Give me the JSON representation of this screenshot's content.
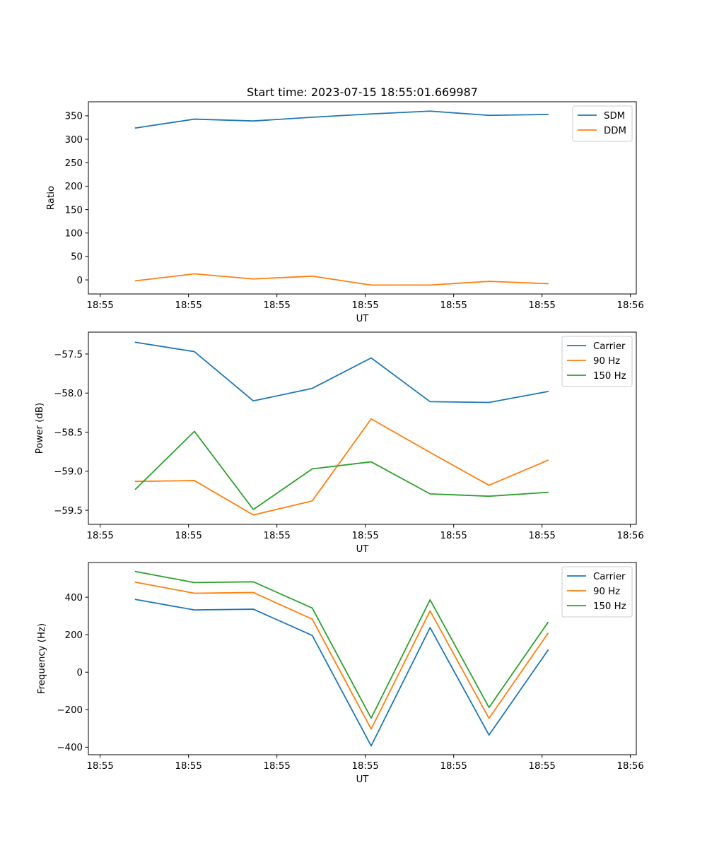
{
  "figure": {
    "title": "Start time: 2023-07-15 18:55:01.669987"
  },
  "chart_data": [
    {
      "type": "line",
      "xlabel": "UT",
      "ylabel": "Ratio",
      "x": [
        1,
        2,
        3,
        4,
        5,
        6,
        7,
        8
      ],
      "xlim": [
        0.2,
        9.5
      ],
      "x_ticks": [
        0.4,
        1.9,
        3.4,
        4.9,
        6.4,
        7.9,
        9.4
      ],
      "x_tick_labels": [
        "18:55",
        "18:55",
        "18:55",
        "18:55",
        "18:55",
        "18:55",
        "18:56"
      ],
      "ylim": [
        -30,
        380
      ],
      "y_ticks": [
        0,
        50,
        100,
        150,
        200,
        250,
        300,
        350
      ],
      "y_tick_labels": [
        "0",
        "50",
        "100",
        "150",
        "200",
        "250",
        "300",
        "350"
      ],
      "legend_position": "top-right",
      "series": [
        {
          "name": "SDM",
          "color": "#1f77b4",
          "values": [
            324,
            343,
            339,
            347,
            354,
            360,
            351,
            353
          ]
        },
        {
          "name": "DDM",
          "color": "#ff7f0e",
          "values": [
            -2,
            13,
            2,
            8,
            -11,
            -11,
            -3,
            -8
          ]
        }
      ]
    },
    {
      "type": "line",
      "xlabel": "UT",
      "ylabel": "Power (dB)",
      "x": [
        1,
        2,
        3,
        4,
        5,
        6,
        7,
        8
      ],
      "xlim": [
        0.2,
        9.5
      ],
      "x_ticks": [
        0.4,
        1.9,
        3.4,
        4.9,
        6.4,
        7.9,
        9.4
      ],
      "x_tick_labels": [
        "18:55",
        "18:55",
        "18:55",
        "18:55",
        "18:55",
        "18:55",
        "18:56"
      ],
      "ylim": [
        -59.68,
        -57.22
      ],
      "y_ticks": [
        -59.5,
        -59.0,
        -58.5,
        -58.0,
        -57.5
      ],
      "y_tick_labels": [
        "−59.5",
        "−59.0",
        "−58.5",
        "−58.0",
        "−57.5"
      ],
      "legend_position": "top-right",
      "series": [
        {
          "name": "Carrier",
          "color": "#1f77b4",
          "values": [
            -57.35,
            -57.47,
            -58.1,
            -57.94,
            -57.55,
            -58.11,
            -58.12,
            -57.98
          ]
        },
        {
          "name": "90 Hz",
          "color": "#ff7f0e",
          "values": [
            -59.13,
            -59.12,
            -59.56,
            -59.38,
            -58.33,
            -58.76,
            -59.18,
            -58.86
          ]
        },
        {
          "name": "150 Hz",
          "color": "#2ca02c",
          "values": [
            -59.23,
            -58.49,
            -59.49,
            -58.97,
            -58.88,
            -59.29,
            -59.32,
            -59.27
          ]
        }
      ]
    },
    {
      "type": "line",
      "xlabel": "UT",
      "ylabel": "Frequency (Hz)",
      "x": [
        1,
        2,
        3,
        4,
        5,
        6,
        7,
        8
      ],
      "xlim": [
        0.2,
        9.5
      ],
      "x_ticks": [
        0.4,
        1.9,
        3.4,
        4.9,
        6.4,
        7.9,
        9.4
      ],
      "x_tick_labels": [
        "18:55",
        "18:55",
        "18:55",
        "18:55",
        "18:55",
        "18:55",
        "18:56"
      ],
      "ylim": [
        -440,
        585
      ],
      "y_ticks": [
        -400,
        -200,
        0,
        200,
        400
      ],
      "y_tick_labels": [
        "−400",
        "−200",
        "0",
        "200",
        "400"
      ],
      "legend_position": "top-right",
      "series": [
        {
          "name": "Carrier",
          "color": "#1f77b4",
          "values": [
            388,
            332,
            336,
            196,
            -393,
            238,
            -335,
            117
          ]
        },
        {
          "name": "90 Hz",
          "color": "#ff7f0e",
          "values": [
            480,
            421,
            425,
            283,
            -303,
            327,
            -246,
            207
          ]
        },
        {
          "name": "150 Hz",
          "color": "#2ca02c",
          "values": [
            537,
            478,
            482,
            342,
            -245,
            386,
            -188,
            265
          ]
        }
      ]
    }
  ]
}
